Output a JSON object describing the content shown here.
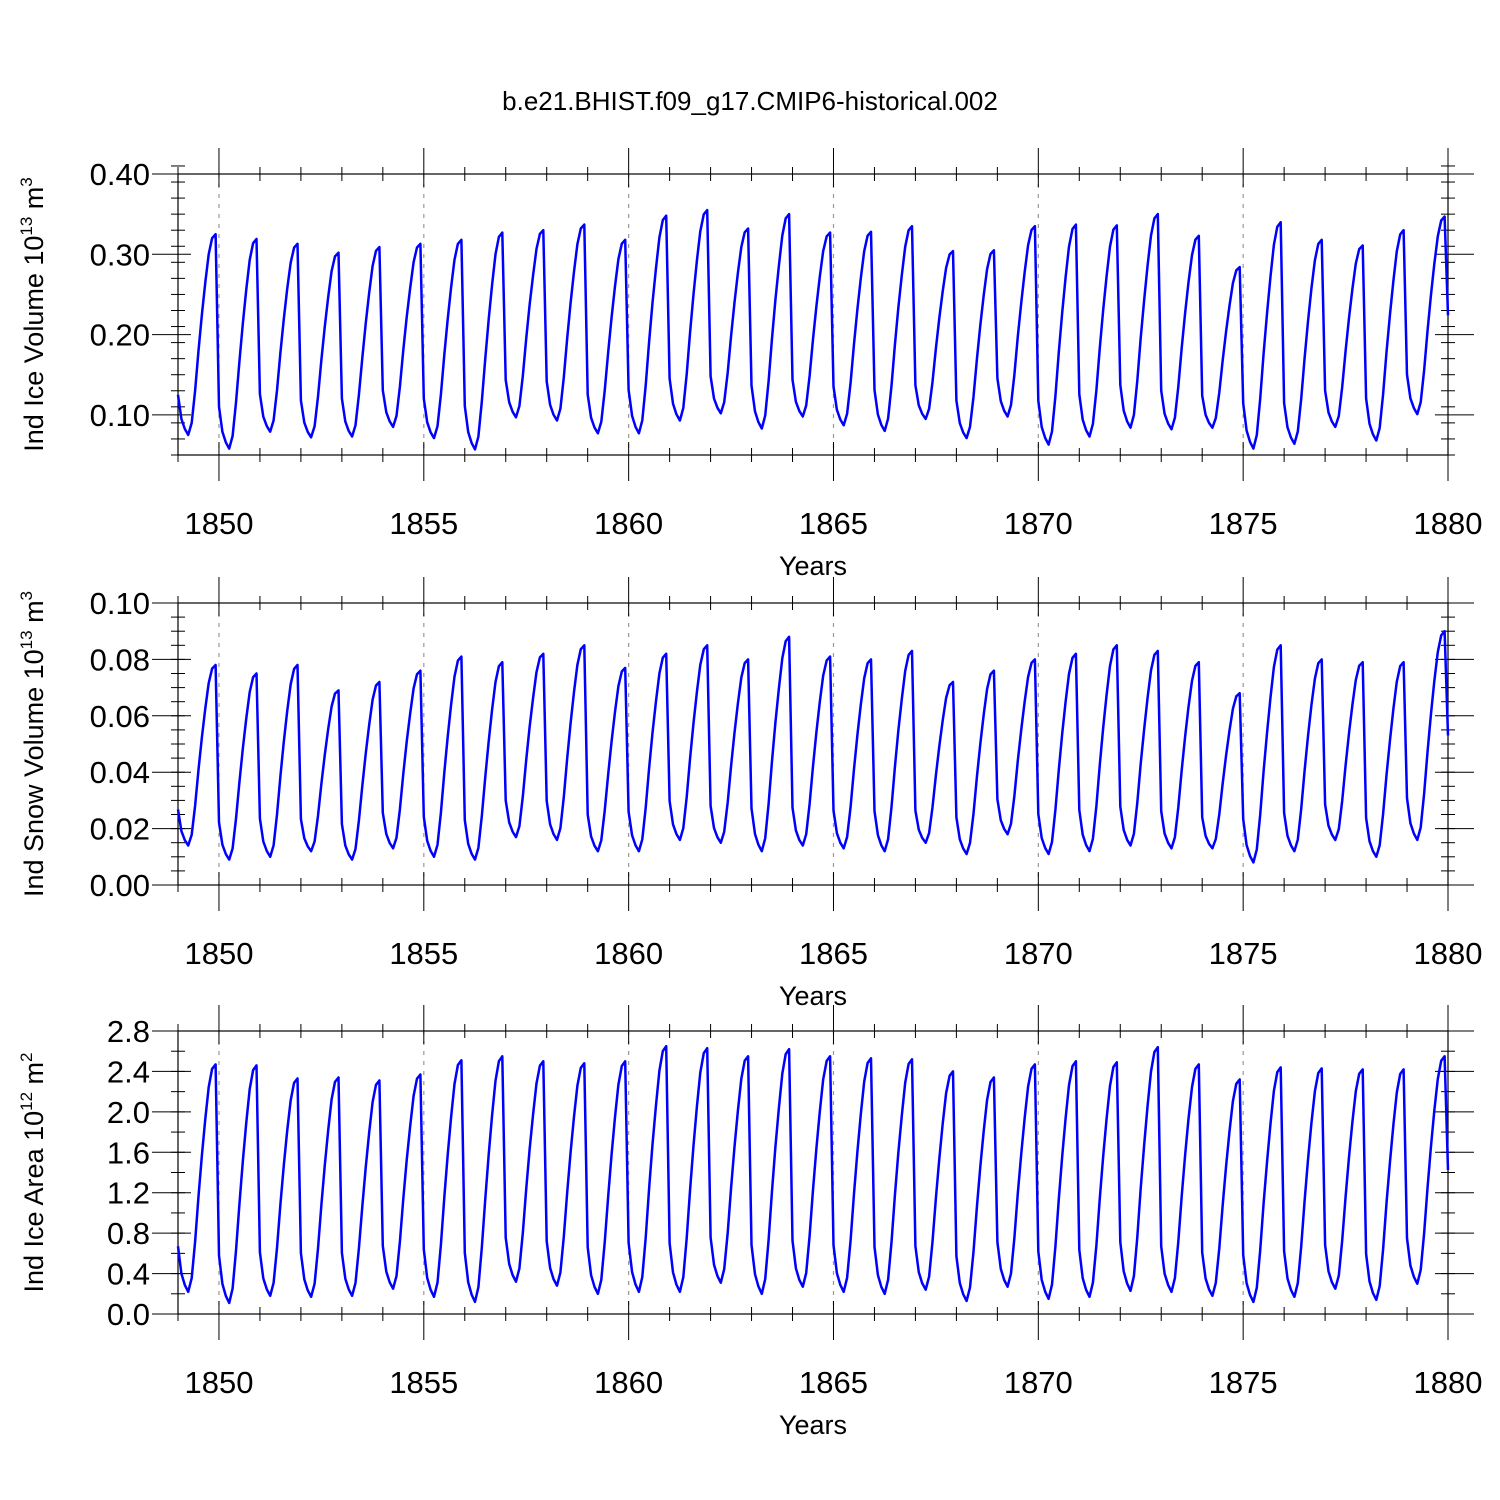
{
  "title": "b.e21.BHIST.f09_g17.CMIP6-historical.002",
  "chart_data": [
    {
      "type": "line",
      "name": "ice-volume",
      "ylabel_main": "Ind Ice Volume 10",
      "ylabel_exp": "13",
      "ylabel_unit": " m",
      "ylabel_unit_exp": "3",
      "xlabel": "Years",
      "xlim": [
        1849.0,
        1880.0
      ],
      "ylim": [
        0.05,
        0.4
      ],
      "yticks": [
        0.1,
        0.2,
        0.3,
        0.4
      ],
      "ytick_labels": [
        "0.10",
        "0.20",
        "0.30",
        "0.40"
      ],
      "yminor_step": 0.02,
      "xticks": [
        1850,
        1855,
        1860,
        1865,
        1870,
        1875,
        1880
      ],
      "xtick_labels": [
        "1850",
        "1855",
        "1860",
        "1865",
        "1870",
        "1875",
        "1880"
      ],
      "series_color": "#0000ff",
      "year_start": 1849,
      "seasonal": {
        "maxima": [
          0.325,
          0.319,
          0.313,
          0.302,
          0.309,
          0.313,
          0.318,
          0.327,
          0.33,
          0.337,
          0.318,
          0.348,
          0.355,
          0.332,
          0.35,
          0.327,
          0.328,
          0.335,
          0.304,
          0.305,
          0.335,
          0.337,
          0.336,
          0.35,
          0.323,
          0.284,
          0.34,
          0.318,
          0.311,
          0.33,
          0.347
        ],
        "minima": [
          0.075,
          0.058,
          0.079,
          0.072,
          0.073,
          0.085,
          0.071,
          0.057,
          0.097,
          0.093,
          0.077,
          0.077,
          0.093,
          0.102,
          0.083,
          0.098,
          0.087,
          0.08,
          0.095,
          0.071,
          0.098,
          0.063,
          0.073,
          0.084,
          0.082,
          0.084,
          0.058,
          0.064,
          0.085,
          0.068,
          0.101
        ]
      }
    },
    {
      "type": "line",
      "name": "snow-volume",
      "ylabel_main": "Ind Snow Volume 10",
      "ylabel_exp": "13",
      "ylabel_unit": " m",
      "ylabel_unit_exp": "3",
      "xlabel": "Years",
      "xlim": [
        1849.0,
        1880.0
      ],
      "ylim": [
        0.0,
        0.1
      ],
      "yticks": [
        0.0,
        0.02,
        0.04,
        0.06,
        0.08,
        0.1
      ],
      "ytick_labels": [
        "0.00",
        "0.02",
        "0.04",
        "0.06",
        "0.08",
        "0.10"
      ],
      "yminor_step": 0.005,
      "xticks": [
        1850,
        1855,
        1860,
        1865,
        1870,
        1875,
        1880
      ],
      "xtick_labels": [
        "1850",
        "1855",
        "1860",
        "1865",
        "1870",
        "1875",
        "1880"
      ],
      "series_color": "#0000ff",
      "year_start": 1849,
      "seasonal": {
        "maxima": [
          0.078,
          0.075,
          0.078,
          0.069,
          0.072,
          0.076,
          0.081,
          0.079,
          0.082,
          0.085,
          0.077,
          0.082,
          0.085,
          0.08,
          0.088,
          0.081,
          0.08,
          0.083,
          0.072,
          0.076,
          0.08,
          0.082,
          0.085,
          0.083,
          0.079,
          0.068,
          0.085,
          0.08,
          0.079,
          0.079,
          0.09
        ],
        "minima": [
          0.014,
          0.009,
          0.01,
          0.012,
          0.009,
          0.013,
          0.01,
          0.009,
          0.017,
          0.016,
          0.012,
          0.012,
          0.016,
          0.015,
          0.012,
          0.014,
          0.013,
          0.012,
          0.015,
          0.011,
          0.018,
          0.011,
          0.012,
          0.014,
          0.013,
          0.013,
          0.008,
          0.012,
          0.016,
          0.01,
          0.016
        ]
      }
    },
    {
      "type": "line",
      "name": "ice-area",
      "ylabel_main": "Ind Ice Area 10",
      "ylabel_exp": "12",
      "ylabel_unit": " m",
      "ylabel_unit_exp": "2",
      "xlabel": "Years",
      "xlim": [
        1849.0,
        1880.0
      ],
      "ylim": [
        0.0,
        2.8
      ],
      "yticks": [
        0.0,
        0.4,
        0.8,
        1.2,
        1.6,
        2.0,
        2.4,
        2.8
      ],
      "ytick_labels": [
        "0.0",
        "0.4",
        "0.8",
        "1.2",
        "1.6",
        "2.0",
        "2.4",
        "2.8"
      ],
      "yminor_step": 0.2,
      "xticks": [
        1850,
        1855,
        1860,
        1865,
        1870,
        1875,
        1880
      ],
      "xtick_labels": [
        "1850",
        "1855",
        "1860",
        "1865",
        "1870",
        "1875",
        "1880"
      ],
      "series_color": "#0000ff",
      "year_start": 1849,
      "seasonal": {
        "maxima": [
          2.47,
          2.46,
          2.33,
          2.34,
          2.31,
          2.37,
          2.51,
          2.55,
          2.5,
          2.48,
          2.5,
          2.65,
          2.63,
          2.55,
          2.62,
          2.55,
          2.53,
          2.52,
          2.4,
          2.34,
          2.47,
          2.5,
          2.49,
          2.64,
          2.47,
          2.32,
          2.44,
          2.43,
          2.42,
          2.42,
          2.55
        ],
        "minima": [
          0.22,
          0.11,
          0.18,
          0.17,
          0.18,
          0.25,
          0.17,
          0.12,
          0.32,
          0.28,
          0.2,
          0.22,
          0.22,
          0.31,
          0.2,
          0.27,
          0.22,
          0.2,
          0.24,
          0.13,
          0.27,
          0.15,
          0.17,
          0.23,
          0.22,
          0.18,
          0.12,
          0.17,
          0.25,
          0.14,
          0.3
        ]
      }
    }
  ]
}
